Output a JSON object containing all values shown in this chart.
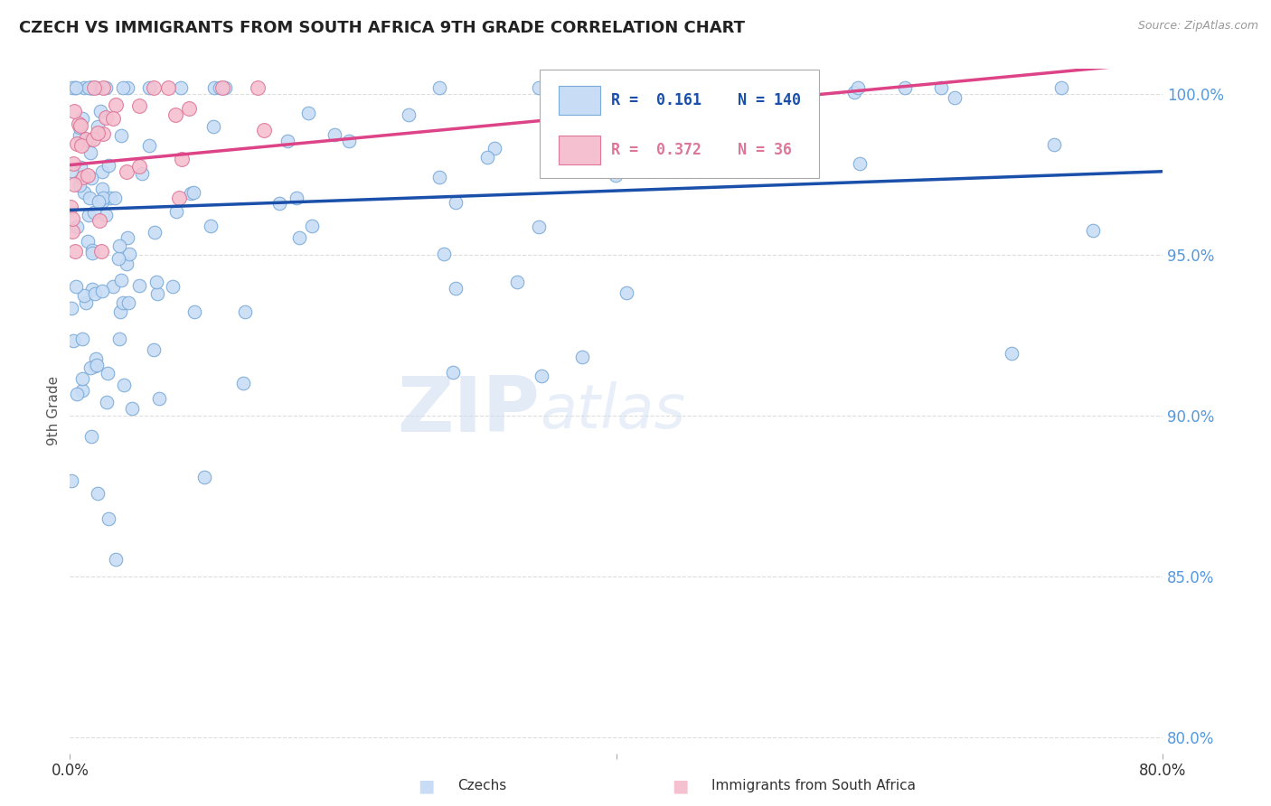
{
  "title": "CZECH VS IMMIGRANTS FROM SOUTH AFRICA 9TH GRADE CORRELATION CHART",
  "source": "Source: ZipAtlas.com",
  "ylabel": "9th Grade",
  "xmin": 0.0,
  "xmax": 0.8,
  "ymin": 0.795,
  "ymax": 1.008,
  "yticks": [
    0.8,
    0.85,
    0.9,
    0.95,
    1.0
  ],
  "ytick_labels": [
    "80.0%",
    "85.0%",
    "90.0%",
    "95.0%",
    "100.0%"
  ],
  "xticks": [
    0.0,
    0.4,
    0.8
  ],
  "xtick_labels": [
    "0.0%",
    "",
    "80.0%"
  ],
  "legend_labels": [
    "Czechs",
    "Immigrants from South Africa"
  ],
  "blue_R": 0.161,
  "blue_N": 140,
  "pink_R": 0.372,
  "pink_N": 36,
  "blue_color": "#c8ddf5",
  "blue_edge": "#7aaad8",
  "pink_color": "#f5c0d0",
  "pink_edge": "#dd7799",
  "blue_line_color": "#1a4faa",
  "pink_line_color": "#dd4488",
  "watermark_zip": "ZIP",
  "watermark_atlas": "atlas",
  "background_color": "#ffffff",
  "grid_color": "#dddddd",
  "blue_trend_x0": 0.0,
  "blue_trend_y0": 0.964,
  "blue_trend_x1": 0.8,
  "blue_trend_y1": 0.976,
  "pink_trend_x0": 0.0,
  "pink_trend_y0": 0.978,
  "pink_trend_x1": 0.8,
  "pink_trend_y1": 1.01
}
